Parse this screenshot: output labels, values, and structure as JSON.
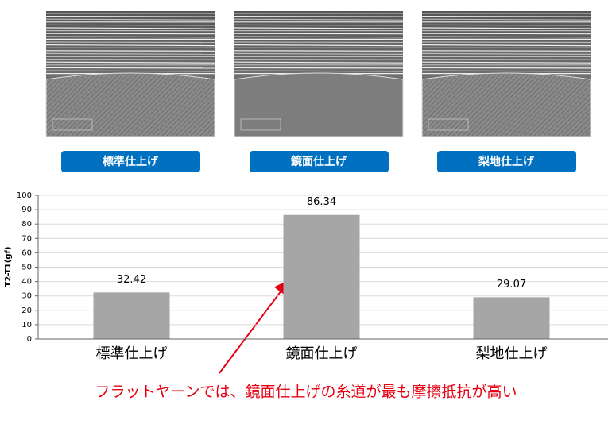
{
  "panels": [
    "標準仕上げ",
    "鏡面仕上げ",
    "梨地仕上げ"
  ],
  "chart_data": {
    "type": "bar",
    "y_label": "T2-T1(gf)",
    "categories": [
      "標準仕上げ",
      "鏡面仕上げ",
      "梨地仕上げ"
    ],
    "values": [
      32.42,
      86.34,
      29.07
    ],
    "color": "#a6a6a6",
    "ylim": [
      0,
      100
    ],
    "yticks": [
      0,
      10,
      20,
      30,
      40,
      50,
      60,
      70,
      80,
      90,
      100
    ],
    "grid": true,
    "annotation": "フラットヤーンでは、鏡面仕上げの糸道が最も摩擦抵抗が高い"
  }
}
